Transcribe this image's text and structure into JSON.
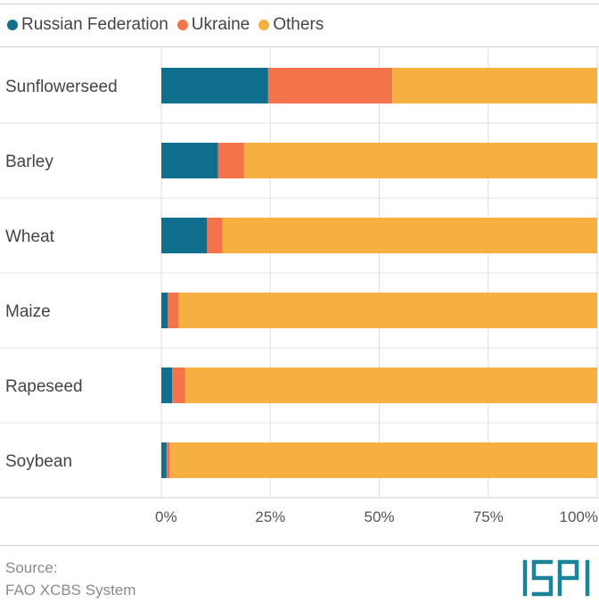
{
  "chart_data": {
    "type": "bar",
    "orientation": "horizontal",
    "stacked": true,
    "categories": [
      "Sunflowerseed",
      "Barley",
      "Wheat",
      "Maize",
      "Rapeseed",
      "Soybean"
    ],
    "series": [
      {
        "name": "Russian Federation",
        "color": "#0f6f8c",
        "values": [
          24.5,
          13.0,
          10.5,
          1.5,
          2.5,
          1.2
        ]
      },
      {
        "name": "Ukraine",
        "color": "#f4734b",
        "values": [
          28.5,
          6.0,
          3.5,
          2.5,
          3.0,
          0.8
        ]
      },
      {
        "name": "Others",
        "color": "#f5b041",
        "values": [
          47.0,
          81.0,
          86.0,
          96.0,
          94.5,
          98.0
        ]
      }
    ],
    "x_ticks": [
      "0%",
      "25%",
      "50%",
      "75%",
      "100%"
    ],
    "xlim": [
      0,
      100
    ],
    "grid": true,
    "legend_position": "top-left"
  },
  "source": {
    "label": "Source:",
    "text": "FAO XCBS System"
  },
  "logo": {
    "text": "ISPI",
    "color": "#17849a"
  }
}
